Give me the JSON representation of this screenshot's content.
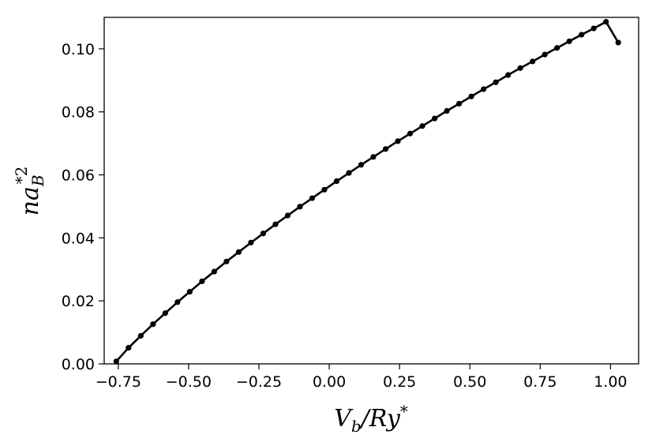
{
  "chart_data": {
    "type": "line",
    "title": "",
    "xlabel": "V_b/Ry*",
    "ylabel": "na_B*2",
    "xlim": [
      -0.8,
      1.1
    ],
    "ylim": [
      0.0,
      0.11
    ],
    "grid": false,
    "x_ticks": [
      -0.75,
      -0.5,
      -0.25,
      0.0,
      0.25,
      0.5,
      0.75,
      1.0
    ],
    "x_tick_labels": [
      "−0.75",
      "−0.50",
      "−0.25",
      "0.00",
      "0.25",
      "0.50",
      "0.75",
      "1.00"
    ],
    "y_ticks": [
      0.0,
      0.02,
      0.04,
      0.06,
      0.08,
      0.1
    ],
    "y_tick_labels": [
      "0.00",
      "0.02",
      "0.04",
      "0.06",
      "0.08",
      "0.10"
    ],
    "color": "#000000",
    "marker": "circle",
    "series": [
      {
        "x": [
          -0.757,
          -0.7135,
          -0.6699,
          -0.6264,
          -0.5829,
          -0.5394,
          -0.4958,
          -0.4523,
          -0.4088,
          -0.3653,
          -0.3217,
          -0.2782,
          -0.2347,
          -0.1912,
          -0.1476,
          -0.1041,
          -0.0606,
          -0.0171,
          0.0265,
          0.07,
          0.1135,
          0.157,
          0.2006,
          0.2441,
          0.2876,
          0.3311,
          0.3747,
          0.4182,
          0.4617,
          0.5052,
          0.5488,
          0.5923,
          0.6358,
          0.6793,
          0.7229,
          0.7664,
          0.8099,
          0.8534,
          0.897,
          0.9405,
          0.984,
          1.0275
        ],
        "y": [
          0.0008,
          0.0051,
          0.0089,
          0.0126,
          0.0161,
          0.0196,
          0.0229,
          0.0262,
          0.0293,
          0.0325,
          0.0355,
          0.0385,
          0.0414,
          0.0443,
          0.0471,
          0.0499,
          0.0526,
          0.0553,
          0.058,
          0.0606,
          0.0632,
          0.0657,
          0.0682,
          0.0707,
          0.0731,
          0.0755,
          0.0779,
          0.0803,
          0.0826,
          0.0849,
          0.0872,
          0.0894,
          0.0917,
          0.0939,
          0.096,
          0.0982,
          0.1003,
          0.1024,
          0.1045,
          0.1065,
          0.1086,
          0.102
        ]
      }
    ]
  }
}
